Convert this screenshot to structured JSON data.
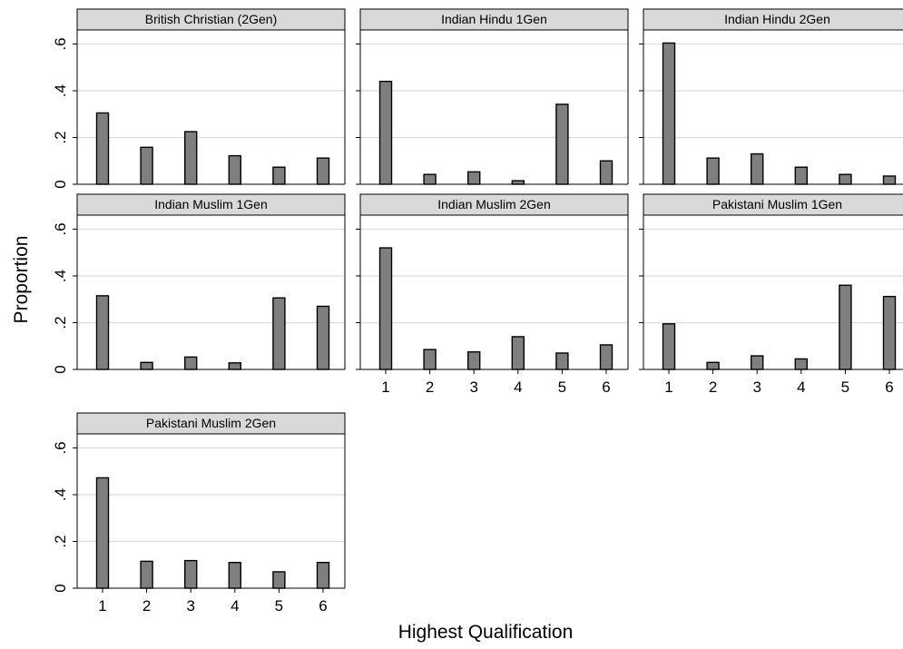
{
  "chart_data": {
    "type": "bar",
    "xlabel": "Highest Qualification",
    "ylabel": "Proportion",
    "categories": [
      "1",
      "2",
      "3",
      "4",
      "5",
      "6"
    ],
    "ylim": [
      0,
      0.66
    ],
    "yticks": [
      {
        "value": 0,
        "label": "0"
      },
      {
        "value": 0.2,
        "label": ".2"
      },
      {
        "value": 0.4,
        "label": ".4"
      },
      {
        "value": 0.6,
        "label": ".6"
      }
    ],
    "grid": true,
    "panels": [
      {
        "title": "British Christian (2Gen)",
        "values": [
          0.305,
          0.158,
          0.225,
          0.122,
          0.073,
          0.112
        ]
      },
      {
        "title": "Indian Hindu 1Gen",
        "values": [
          0.44,
          0.042,
          0.053,
          0.015,
          0.342,
          0.1
        ]
      },
      {
        "title": "Indian Hindu 2Gen",
        "values": [
          0.604,
          0.112,
          0.13,
          0.073,
          0.042,
          0.035
        ]
      },
      {
        "title": "Indian Muslim 1Gen",
        "values": [
          0.315,
          0.03,
          0.053,
          0.028,
          0.306,
          0.27
        ]
      },
      {
        "title": "Indian Muslim 2Gen",
        "values": [
          0.52,
          0.085,
          0.075,
          0.14,
          0.07,
          0.105
        ]
      },
      {
        "title": "Pakistani Muslim 1Gen",
        "values": [
          0.195,
          0.03,
          0.058,
          0.045,
          0.36,
          0.312
        ]
      },
      {
        "title": "Pakistani Muslim 2Gen",
        "values": [
          0.472,
          0.115,
          0.118,
          0.11,
          0.07,
          0.11
        ]
      }
    ]
  }
}
